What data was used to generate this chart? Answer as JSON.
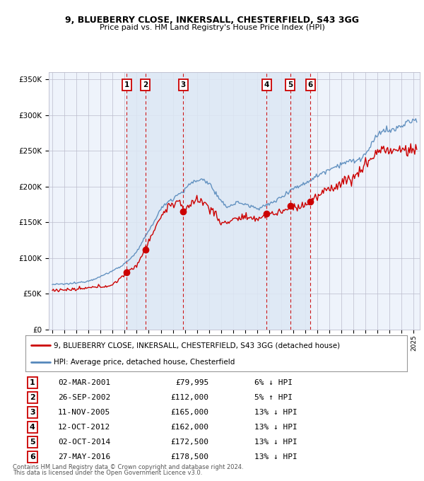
{
  "title1": "9, BLUEBERRY CLOSE, INKERSALL, CHESTERFIELD, S43 3GG",
  "title2": "Price paid vs. HM Land Registry's House Price Index (HPI)",
  "ylabel_ticks": [
    "£0",
    "£50K",
    "£100K",
    "£150K",
    "£200K",
    "£250K",
    "£300K",
    "£350K"
  ],
  "ytick_values": [
    0,
    50000,
    100000,
    150000,
    200000,
    250000,
    300000,
    350000
  ],
  "ylim": [
    0,
    360000
  ],
  "sale_dates_num": [
    2001.16,
    2002.73,
    2005.86,
    2012.78,
    2014.75,
    2016.41
  ],
  "sale_prices": [
    79995,
    112000,
    165000,
    162000,
    172500,
    178500
  ],
  "sale_labels": [
    "1",
    "2",
    "3",
    "4",
    "5",
    "6"
  ],
  "sale_dates_str": [
    "02-MAR-2001",
    "26-SEP-2002",
    "11-NOV-2005",
    "12-OCT-2012",
    "02-OCT-2014",
    "27-MAY-2016"
  ],
  "sale_prices_str": [
    "£79,995",
    "£112,000",
    "£165,000",
    "£162,000",
    "£172,500",
    "£178,500"
  ],
  "sale_hpi_str": [
    "6% ↓ HPI",
    "5% ↑ HPI",
    "13% ↓ HPI",
    "13% ↓ HPI",
    "13% ↓ HPI",
    "13% ↓ HPI"
  ],
  "legend_red": "9, BLUEBERRY CLOSE, INKERSALL, CHESTERFIELD, S43 3GG (detached house)",
  "legend_blue": "HPI: Average price, detached house, Chesterfield",
  "footer1": "Contains HM Land Registry data © Crown copyright and database right 2024.",
  "footer2": "This data is licensed under the Open Government Licence v3.0.",
  "red_color": "#cc0000",
  "blue_color": "#5588bb",
  "shade_color": "#dde8f5",
  "bg_color": "#eef3fb",
  "grid_color": "#bbbbcc",
  "box_color": "#cc0000",
  "dashed_color": "#cc0000",
  "xlim_start": 1994.7,
  "xlim_end": 2025.5,
  "hpi_key_points": [
    [
      1995.0,
      63000
    ],
    [
      1996.0,
      63500
    ],
    [
      1997.0,
      65000
    ],
    [
      1998.0,
      68000
    ],
    [
      1999.0,
      74000
    ],
    [
      2000.0,
      82000
    ],
    [
      2001.0,
      92000
    ],
    [
      2002.0,
      108000
    ],
    [
      2003.0,
      138000
    ],
    [
      2004.0,
      168000
    ],
    [
      2004.5,
      178000
    ],
    [
      2005.0,
      183000
    ],
    [
      2005.5,
      190000
    ],
    [
      2006.0,
      195000
    ],
    [
      2006.5,
      205000
    ],
    [
      2007.0,
      208000
    ],
    [
      2007.5,
      210000
    ],
    [
      2008.0,
      205000
    ],
    [
      2008.5,
      192000
    ],
    [
      2009.0,
      178000
    ],
    [
      2009.5,
      172000
    ],
    [
      2010.0,
      175000
    ],
    [
      2010.5,
      178000
    ],
    [
      2011.0,
      175000
    ],
    [
      2011.5,
      172000
    ],
    [
      2012.0,
      170000
    ],
    [
      2012.5,
      172000
    ],
    [
      2013.0,
      175000
    ],
    [
      2013.5,
      180000
    ],
    [
      2014.0,
      185000
    ],
    [
      2014.5,
      192000
    ],
    [
      2015.0,
      198000
    ],
    [
      2015.5,
      200000
    ],
    [
      2016.0,
      205000
    ],
    [
      2016.5,
      210000
    ],
    [
      2017.0,
      215000
    ],
    [
      2017.5,
      220000
    ],
    [
      2018.0,
      225000
    ],
    [
      2018.5,
      228000
    ],
    [
      2019.0,
      232000
    ],
    [
      2019.5,
      235000
    ],
    [
      2020.0,
      235000
    ],
    [
      2020.5,
      238000
    ],
    [
      2021.0,
      245000
    ],
    [
      2021.5,
      258000
    ],
    [
      2022.0,
      272000
    ],
    [
      2022.5,
      280000
    ],
    [
      2023.0,
      278000
    ],
    [
      2023.5,
      280000
    ],
    [
      2024.0,
      285000
    ],
    [
      2024.5,
      290000
    ],
    [
      2025.3,
      293000
    ]
  ],
  "red_key_points": [
    [
      1995.0,
      55000
    ],
    [
      1996.0,
      55500
    ],
    [
      1997.0,
      56000
    ],
    [
      1998.0,
      58000
    ],
    [
      1999.0,
      60000
    ],
    [
      2000.0,
      62000
    ],
    [
      2001.0,
      78000
    ],
    [
      2001.2,
      80000
    ],
    [
      2002.0,
      90000
    ],
    [
      2002.7,
      112000
    ],
    [
      2003.0,
      125000
    ],
    [
      2003.5,
      140000
    ],
    [
      2004.0,
      158000
    ],
    [
      2004.5,
      170000
    ],
    [
      2005.0,
      175000
    ],
    [
      2005.5,
      182000
    ],
    [
      2005.9,
      165000
    ],
    [
      2006.0,
      162000
    ],
    [
      2006.5,
      178000
    ],
    [
      2007.0,
      182000
    ],
    [
      2007.5,
      178000
    ],
    [
      2008.0,
      172000
    ],
    [
      2008.5,
      162000
    ],
    [
      2009.0,
      148000
    ],
    [
      2009.5,
      150000
    ],
    [
      2010.0,
      155000
    ],
    [
      2010.5,
      155000
    ],
    [
      2011.0,
      158000
    ],
    [
      2011.5,
      152000
    ],
    [
      2012.0,
      156000
    ],
    [
      2012.5,
      158000
    ],
    [
      2012.8,
      162000
    ],
    [
      2013.0,
      162000
    ],
    [
      2013.5,
      162000
    ],
    [
      2014.0,
      165000
    ],
    [
      2014.5,
      168000
    ],
    [
      2014.75,
      172500
    ],
    [
      2015.0,
      170000
    ],
    [
      2015.5,
      172000
    ],
    [
      2016.0,
      175000
    ],
    [
      2016.4,
      178500
    ],
    [
      2016.5,
      180000
    ],
    [
      2017.0,
      185000
    ],
    [
      2017.5,
      192000
    ],
    [
      2018.0,
      198000
    ],
    [
      2018.5,
      200000
    ],
    [
      2019.0,
      205000
    ],
    [
      2019.5,
      210000
    ],
    [
      2020.0,
      212000
    ],
    [
      2020.5,
      220000
    ],
    [
      2021.0,
      232000
    ],
    [
      2021.5,
      240000
    ],
    [
      2022.0,
      248000
    ],
    [
      2022.5,
      255000
    ],
    [
      2023.0,
      248000
    ],
    [
      2023.5,
      250000
    ],
    [
      2024.0,
      252000
    ],
    [
      2024.5,
      250000
    ],
    [
      2025.3,
      252000
    ]
  ]
}
